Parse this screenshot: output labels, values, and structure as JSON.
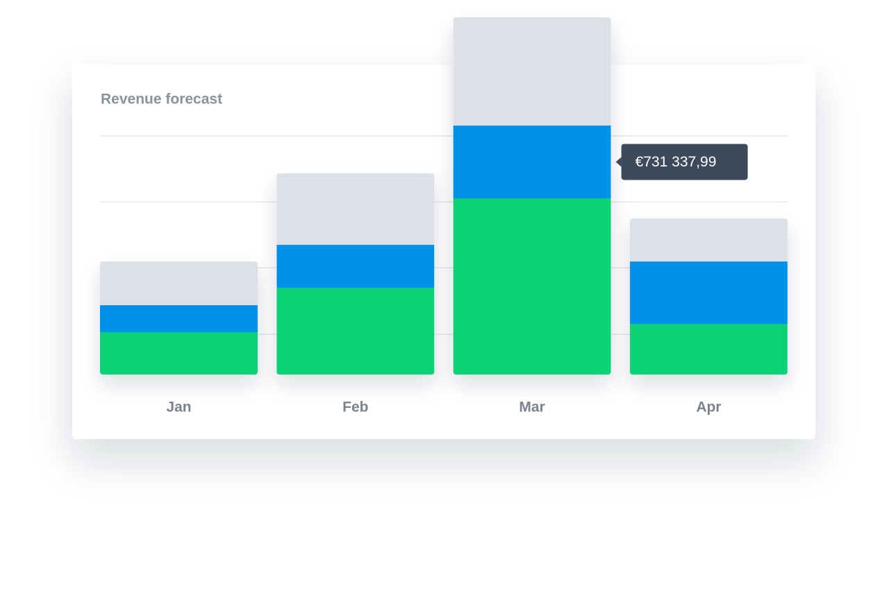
{
  "chart_data": {
    "type": "stacked-bar",
    "title": "Revenue forecast",
    "categories": [
      "Jan",
      "Feb",
      "Mar",
      "Apr"
    ],
    "series": [
      {
        "color": "#10d275",
        "values": [
          425000,
          871000,
          1769000,
          508000
        ]
      },
      {
        "color": "#0091e8",
        "values": [
          272000,
          432000,
          731337.99,
          627000
        ],
        "value_labels": [
          null,
          null,
          "€731 337,99",
          null
        ]
      },
      {
        "color": "#dce1e7",
        "values": [
          439000,
          717000,
          1087000,
          432000
        ]
      }
    ],
    "ylim": [
      0,
      3600000
    ]
  }
}
